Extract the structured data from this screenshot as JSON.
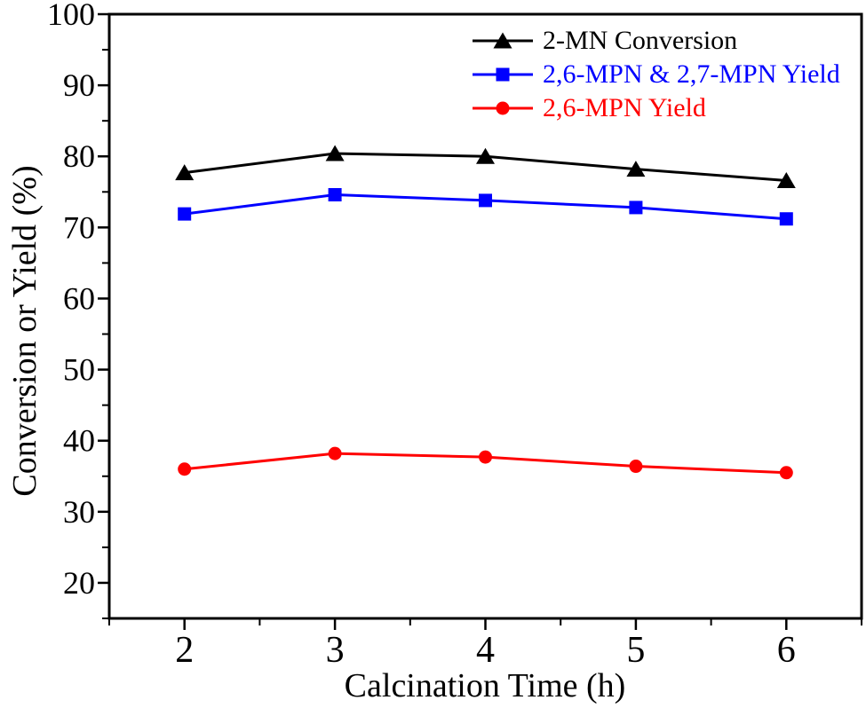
{
  "figure": {
    "background_color": "#ffffff",
    "frame_color": "#000000"
  },
  "chart_data": {
    "type": "line",
    "title": "",
    "xlabel": "Calcination Time (h)",
    "ylabel": "Conversion or Yield (%)",
    "x": [
      2,
      3,
      4,
      5,
      6
    ],
    "series": [
      {
        "name": "2-MN Conversion",
        "marker": "triangle",
        "color": "#000000",
        "values": [
          77.7,
          80.4,
          80.0,
          78.2,
          76.6
        ]
      },
      {
        "name": "2,6-MPN & 2,7-MPN Yield",
        "marker": "square",
        "color": "#0000ff",
        "values": [
          71.9,
          74.6,
          73.8,
          72.8,
          71.2
        ]
      },
      {
        "name": "2,6-MPN Yield",
        "marker": "circle",
        "color": "#ff0000",
        "values": [
          36.0,
          38.2,
          37.7,
          36.4,
          35.5
        ]
      }
    ],
    "xlim": [
      1.5,
      6.5
    ],
    "ylim": [
      15,
      100
    ],
    "x_major_ticks": [
      2,
      3,
      4,
      5,
      6
    ],
    "y_major_ticks": [
      20,
      30,
      40,
      50,
      60,
      70,
      80,
      90,
      100
    ],
    "x_minor_step": 0.5,
    "y_minor_step": 5,
    "grid": false,
    "frame": true,
    "legend_position": "top-right"
  }
}
